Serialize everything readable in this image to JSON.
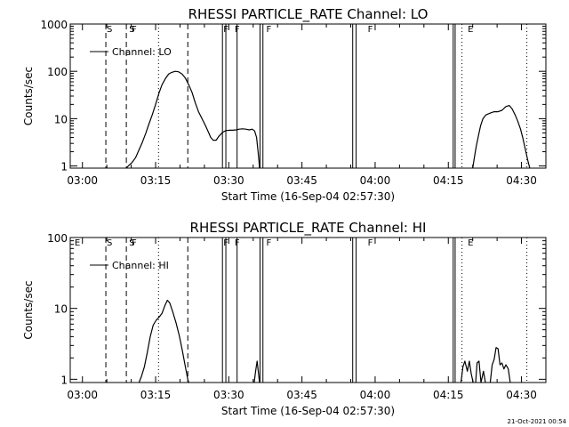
{
  "footer_date": "21-Oct-2021 00:54",
  "chart_data": [
    {
      "type": "line",
      "title": "RHESSI PARTICLE_RATE Channel: LO",
      "xlabel": "Start Time (16-Sep-04 02:57:30)",
      "ylabel": "Counts/sec",
      "ylog": true,
      "xlim_minutes_after_03_00": [
        -2.5,
        95
      ],
      "ylim": [
        0.9,
        1000
      ],
      "xtick_labels": [
        "03:00",
        "03:15",
        "03:30",
        "03:45",
        "04:00",
        "04:15",
        "04:30"
      ],
      "xtick_values": [
        0,
        15,
        30,
        45,
        60,
        75,
        90
      ],
      "ytick_labels": [
        "1",
        "10",
        "100",
        "1000"
      ],
      "ytick_values": [
        1,
        10,
        100,
        1000
      ],
      "legend": "Channel: LO",
      "event_letters": [
        {
          "label": "S",
          "x": 4.8
        },
        {
          "label": "S",
          "x": 9.4
        },
        {
          "label": "F",
          "x": 9.9
        },
        {
          "label": "F",
          "x": 28.7
        },
        {
          "label": "F",
          "x": 31.0
        },
        {
          "label": "F",
          "x": 37.5
        },
        {
          "label": "F",
          "x": 58.3
        },
        {
          "label": "E",
          "x": 78.8
        }
      ],
      "dashed_lines": [
        4.8,
        9.0,
        21.6
      ],
      "dotted_lines": [
        15.6,
        77.8,
        91.1
      ],
      "solid_lines": [
        28.7,
        29.4,
        31.7,
        36.4,
        37.0,
        55.4,
        56.1,
        76.0,
        76.4
      ],
      "series": [
        {
          "name": "Channel: LO",
          "segments": [
            [
              [
                9.0,
                0.9
              ],
              [
                9.4,
                1.0
              ],
              [
                10.2,
                1.2
              ],
              [
                10.9,
                1.5
              ],
              [
                11.6,
                2.2
              ],
              [
                12.3,
                3.2
              ],
              [
                13.0,
                5.0
              ],
              [
                13.6,
                7.5
              ],
              [
                14.3,
                12
              ],
              [
                15.0,
                20
              ],
              [
                15.7,
                35
              ],
              [
                16.3,
                52
              ],
              [
                17.0,
                70
              ],
              [
                17.7,
                88
              ],
              [
                18.3,
                95
              ],
              [
                19.0,
                100
              ],
              [
                19.7,
                98
              ],
              [
                20.4,
                88
              ],
              [
                21.1,
                72
              ],
              [
                21.8,
                52
              ],
              [
                22.5,
                35
              ],
              [
                23.1,
                22
              ],
              [
                23.8,
                14
              ],
              [
                24.5,
                10
              ],
              [
                25.2,
                7.2
              ],
              [
                25.9,
                5.0
              ],
              [
                26.3,
                4.0
              ],
              [
                26.8,
                3.5
              ],
              [
                27.4,
                3.5
              ],
              [
                28.0,
                4.3
              ],
              [
                28.7,
                5.1
              ],
              [
                29.4,
                5.6
              ],
              [
                30.1,
                5.7
              ],
              [
                30.8,
                5.7
              ],
              [
                31.5,
                5.8
              ],
              [
                32.1,
                6.0
              ],
              [
                32.8,
                6.1
              ],
              [
                33.5,
                6.0
              ],
              [
                34.2,
                5.8
              ],
              [
                34.8,
                6.0
              ],
              [
                35.3,
                5.5
              ],
              [
                35.7,
                4.0
              ],
              [
                36.0,
                2.0
              ],
              [
                36.2,
                1.2
              ],
              [
                36.3,
                0.9
              ]
            ],
            [
              [
                80.0,
                0.9
              ],
              [
                80.3,
                1.4
              ],
              [
                80.7,
                2.5
              ],
              [
                81.2,
                4.5
              ],
              [
                81.6,
                7.0
              ],
              [
                82.1,
                10
              ],
              [
                82.7,
                12
              ],
              [
                83.5,
                13
              ],
              [
                84.4,
                14
              ],
              [
                85.2,
                14
              ],
              [
                86.0,
                15
              ],
              [
                86.8,
                18
              ],
              [
                87.5,
                19
              ],
              [
                88.1,
                16
              ],
              [
                88.7,
                12
              ],
              [
                89.2,
                9
              ],
              [
                89.8,
                6
              ],
              [
                90.3,
                3.8
              ],
              [
                90.8,
                2.2
              ],
              [
                91.3,
                1.3
              ],
              [
                91.7,
                0.9
              ]
            ]
          ]
        }
      ]
    },
    {
      "type": "line",
      "title": "RHESSI PARTICLE_RATE Channel: HI",
      "xlabel": "Start Time (16-Sep-04 02:57:30)",
      "ylabel": "Counts/sec",
      "ylog": true,
      "xlim_minutes_after_03_00": [
        -2.5,
        95
      ],
      "ylim": [
        0.9,
        100
      ],
      "xtick_labels": [
        "03:00",
        "03:15",
        "03:30",
        "03:45",
        "04:00",
        "04:15",
        "04:30"
      ],
      "xtick_values": [
        0,
        15,
        30,
        45,
        60,
        75,
        90
      ],
      "ytick_labels": [
        "1",
        "10",
        "100"
      ],
      "ytick_values": [
        1,
        10,
        100
      ],
      "legend": "Channel: HI",
      "event_letters": [
        {
          "label": "E",
          "x": -1.8
        },
        {
          "label": "S",
          "x": 4.8
        },
        {
          "label": "S",
          "x": 9.4
        },
        {
          "label": "F",
          "x": 9.9
        },
        {
          "label": "F",
          "x": 28.7
        },
        {
          "label": "F",
          "x": 31.0
        },
        {
          "label": "F",
          "x": 37.5
        },
        {
          "label": "F",
          "x": 58.3
        },
        {
          "label": "E",
          "x": 78.8
        }
      ],
      "dashed_lines": [
        4.8,
        9.0,
        21.6
      ],
      "dotted_lines": [
        15.6,
        77.8,
        91.1
      ],
      "solid_lines": [
        28.7,
        29.4,
        31.7,
        36.4,
        37.0,
        55.4,
        56.1,
        76.0,
        76.4
      ],
      "series": [
        {
          "name": "Channel: HI",
          "segments": [
            [
              [
                11.6,
                0.9
              ],
              [
                12.1,
                1.1
              ],
              [
                12.7,
                1.5
              ],
              [
                13.3,
                2.4
              ],
              [
                13.9,
                4.0
              ],
              [
                14.5,
                5.8
              ],
              [
                15.1,
                6.8
              ],
              [
                15.7,
                7.5
              ],
              [
                16.3,
                8.5
              ],
              [
                16.9,
                11
              ],
              [
                17.4,
                13
              ],
              [
                17.9,
                12
              ],
              [
                18.5,
                9.0
              ],
              [
                19.2,
                6.2
              ],
              [
                19.9,
                4.0
              ],
              [
                20.5,
                2.5
              ],
              [
                21.1,
                1.5
              ],
              [
                21.6,
                1.0
              ],
              [
                21.8,
                0.9
              ]
            ],
            [
              [
                35.2,
                0.9
              ],
              [
                35.5,
                1.3
              ],
              [
                35.8,
                1.8
              ],
              [
                36.1,
                1.2
              ],
              [
                36.3,
                0.9
              ]
            ],
            [
              [
                77.6,
                0.9
              ],
              [
                78.0,
                1.5
              ],
              [
                78.4,
                1.8
              ],
              [
                78.9,
                1.3
              ],
              [
                79.3,
                1.8
              ],
              [
                79.7,
                1.2
              ],
              [
                80.1,
                0.9
              ]
            ],
            [
              [
                80.6,
                0.9
              ],
              [
                80.9,
                1.7
              ],
              [
                81.3,
                1.8
              ],
              [
                81.7,
                0.9
              ],
              [
                82.2,
                1.3
              ],
              [
                82.6,
                0.9
              ]
            ],
            [
              [
                83.6,
                0.9
              ],
              [
                84.0,
                1.6
              ],
              [
                84.4,
                1.9
              ],
              [
                84.8,
                2.8
              ],
              [
                85.2,
                2.7
              ],
              [
                85.6,
                1.6
              ],
              [
                86.0,
                1.7
              ],
              [
                86.4,
                1.4
              ],
              [
                86.8,
                1.6
              ],
              [
                87.3,
                1.4
              ],
              [
                87.7,
                0.9
              ]
            ]
          ]
        }
      ]
    }
  ]
}
